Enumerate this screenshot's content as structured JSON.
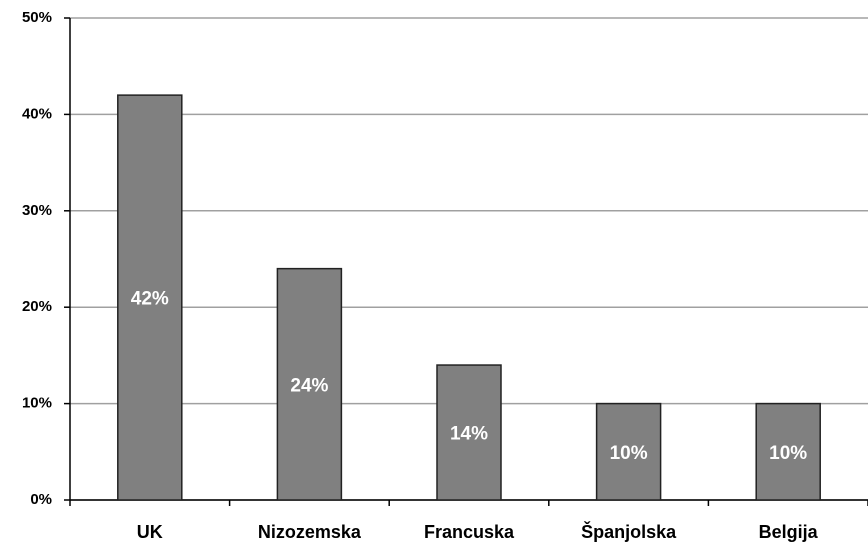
{
  "chart_data": {
    "type": "bar",
    "categories": [
      "UK",
      "Nizozemska",
      "Francuska",
      "Španjolska",
      "Belgija"
    ],
    "values": [
      42,
      24,
      14,
      10,
      10
    ],
    "value_labels": [
      "42%",
      "24%",
      "14%",
      "10%",
      "10%"
    ],
    "color": "#808080",
    "ylim": [
      0,
      50
    ],
    "yticks": [
      {
        "value": 0,
        "label": "0%"
      },
      {
        "value": 10,
        "label": "10%"
      },
      {
        "value": 20,
        "label": "20%"
      },
      {
        "value": 30,
        "label": "30%"
      },
      {
        "value": 40,
        "label": "40%"
      },
      {
        "value": 50,
        "label": "50%"
      }
    ],
    "grid": true
  }
}
